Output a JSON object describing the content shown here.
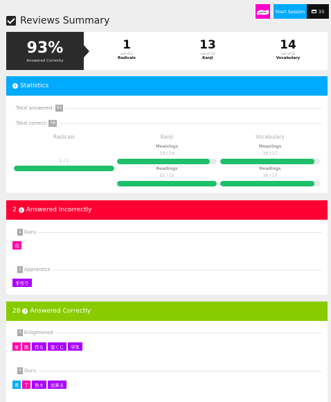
{
  "header": {
    "title": "Reviews Summary",
    "start_session_label": "Start Session",
    "queue_count": "33"
  },
  "summary": {
    "percent": "93%",
    "percent_label": "Answered Correctly",
    "stats": [
      {
        "value": "1",
        "out_of": "out of 1",
        "name": "Radicals"
      },
      {
        "value": "13",
        "out_of": "out of 14",
        "name": "Kanji"
      },
      {
        "value": "14",
        "out_of": "out of 15",
        "name": "Vocabulary"
      }
    ]
  },
  "statistics": {
    "heading": "Statistics",
    "total_answered_label": "Total answered:",
    "total_answered": "61",
    "total_correct_label": "Total correct:",
    "total_correct": "58",
    "columns": {
      "radicals": {
        "title": "Radicals",
        "fraction": "1 / 1",
        "progress": 1.0
      },
      "kanji": {
        "title": "Kanji",
        "meanings_label": "Meanings",
        "meanings_fraction": "13 / 14",
        "meanings_progress": 0.929,
        "readings_label": "Readings",
        "readings_fraction": "12 / 12",
        "readings_progress": 1.0
      },
      "vocabulary": {
        "title": "Vocabulary",
        "meanings_label": "Meanings",
        "meanings_fraction": "16 / 17",
        "meanings_progress": 0.941,
        "readings_label": "Readings",
        "readings_fraction": "16 / 17",
        "readings_progress": 0.941
      }
    }
  },
  "incorrect": {
    "count": "2",
    "heading": "Answered Incorrectly",
    "groups": [
      {
        "count": "1",
        "level": "Guru",
        "items": [
          {
            "text": "向",
            "kind": "kanji"
          }
        ]
      },
      {
        "count": "1",
        "level": "Apprentice",
        "items": [
          {
            "text": "手作り",
            "kind": "vocab"
          }
        ]
      }
    ]
  },
  "correct": {
    "count": "28",
    "heading": "Answered Correctly",
    "groups": [
      {
        "count": "5",
        "level": "Enlightened",
        "items": [
          {
            "text": "星",
            "kind": "kanji"
          },
          {
            "text": "南",
            "kind": "kanji"
          },
          {
            "text": "作る",
            "kind": "vocab"
          },
          {
            "text": "宝くじ",
            "kind": "vocab"
          },
          {
            "text": "学年",
            "kind": "vocab"
          }
        ]
      },
      {
        "count": "4",
        "level": "Guru",
        "items": [
          {
            "text": "青",
            "kind": "radical"
          },
          {
            "text": "了",
            "kind": "kanji"
          },
          {
            "text": "色々",
            "kind": "vocab"
          },
          {
            "text": "出来る",
            "kind": "vocab"
          }
        ]
      }
    ]
  },
  "colors": {
    "statistics_header": "#00aaff",
    "incorrect_header": "#ff0033",
    "correct_header": "#88cc00",
    "progress_fill": "#1fc06a",
    "kanji": "#ff00aa",
    "vocabulary": "#aa00ff",
    "radical": "#00aaff"
  },
  "icons": {
    "title": "checkbox-icon",
    "queue": "inbox-icon",
    "statistics": "info-circle-icon",
    "incorrect": "arrow-down-circle-icon",
    "correct": "arrow-up-circle-icon"
  }
}
